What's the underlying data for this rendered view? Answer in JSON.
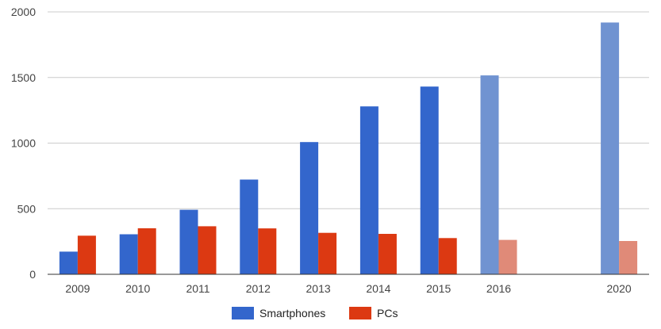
{
  "chart_data": {
    "type": "bar",
    "title": "",
    "xlabel": "",
    "ylabel": "",
    "categories": [
      "2009",
      "2010",
      "2011",
      "2012",
      "2013",
      "2014",
      "2015",
      "2016",
      "",
      "2020"
    ],
    "series": [
      {
        "name": "Smartphones",
        "color": "#3366cc",
        "projected_color": "#7093d1",
        "values": [
          173,
          305,
          492,
          722,
          1008,
          1280,
          1431,
          1516,
          null,
          1919
        ]
      },
      {
        "name": "PCs",
        "color": "#dc3912",
        "projected_color": "#e08a78",
        "values": [
          294,
          351,
          366,
          350,
          316,
          308,
          276,
          262,
          null,
          254
        ]
      }
    ],
    "projected_categories": [
      "2016",
      "2020"
    ],
    "ylim": [
      0,
      2000
    ],
    "yticks": [
      "0",
      "500",
      "1000",
      "1500",
      "2000"
    ],
    "grid": true,
    "legend_position": "bottom"
  }
}
